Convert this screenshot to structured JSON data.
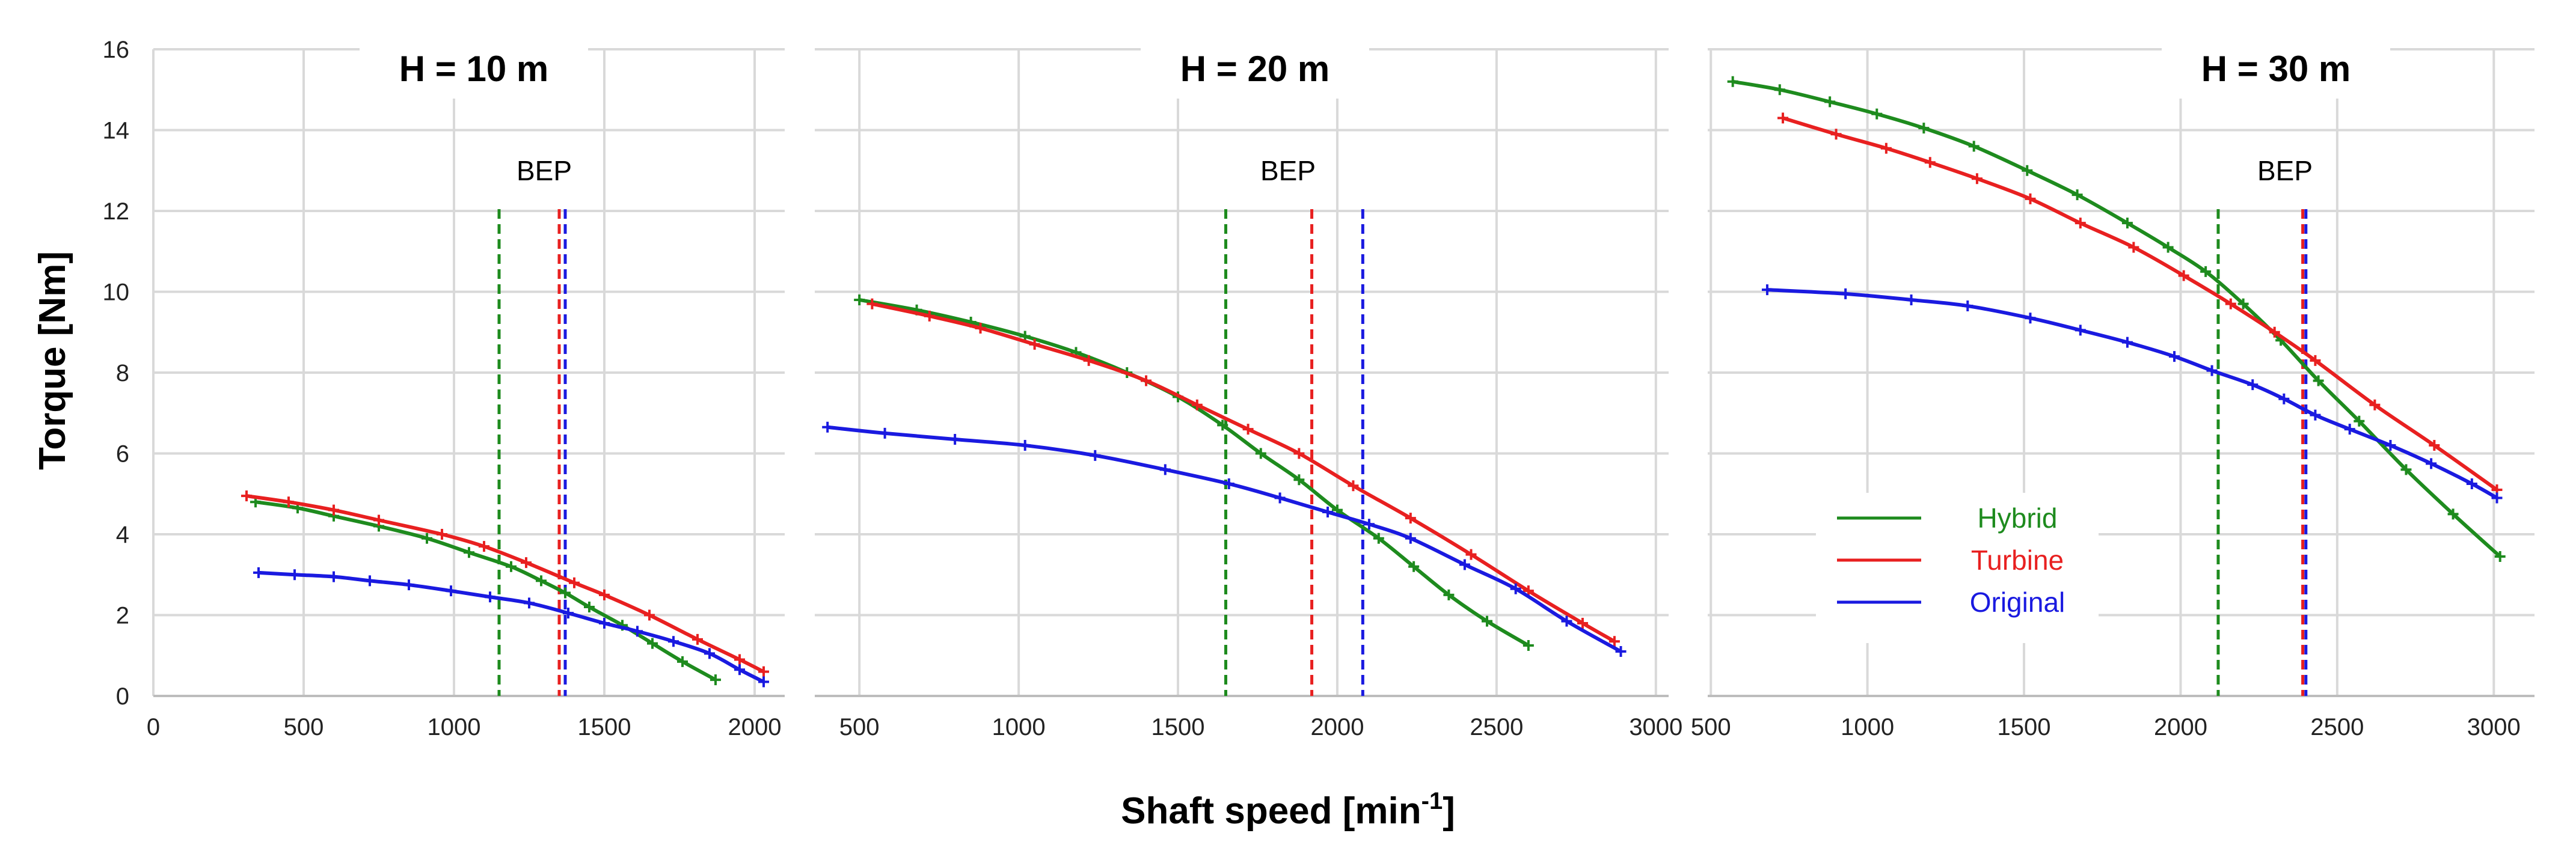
{
  "colors": {
    "Hybrid": "#1e8b1e",
    "Turbine": "#e82020",
    "Original": "#1a1ae0",
    "grid": "#d9d9d9"
  },
  "ylabel": "Torque [Nm]",
  "xlabel_main": "Shaft speed [min",
  "xlabel_sup": "-1",
  "xlabel_end": "]",
  "bep_label": "BEP",
  "legend": [
    "Hybrid",
    "Turbine",
    "Original"
  ],
  "chart_data": [
    {
      "type": "line",
      "title": "H = 10 m",
      "xlim": [
        0,
        2100
      ],
      "ylim": [
        0,
        16
      ],
      "xticks": [
        0,
        500,
        1000,
        1500,
        2000
      ],
      "yticks": [
        0,
        2,
        4,
        6,
        8,
        10,
        12,
        14,
        16
      ],
      "bep": {
        "Hybrid": 1150,
        "Turbine": 1350,
        "Original": 1370
      },
      "series": [
        {
          "name": "Hybrid",
          "x": [
            340,
            480,
            600,
            750,
            910,
            1050,
            1190,
            1290,
            1370,
            1450,
            1560,
            1660,
            1760,
            1870
          ],
          "y": [
            4.8,
            4.65,
            4.45,
            4.2,
            3.9,
            3.55,
            3.2,
            2.85,
            2.55,
            2.2,
            1.75,
            1.3,
            0.85,
            0.4
          ]
        },
        {
          "name": "Turbine",
          "x": [
            310,
            450,
            600,
            750,
            960,
            1100,
            1240,
            1400,
            1500,
            1650,
            1810,
            1950,
            2030
          ],
          "y": [
            4.95,
            4.8,
            4.6,
            4.35,
            4.0,
            3.7,
            3.3,
            2.8,
            2.5,
            2.0,
            1.4,
            0.9,
            0.6
          ]
        },
        {
          "name": "Original",
          "x": [
            350,
            470,
            600,
            720,
            850,
            990,
            1120,
            1250,
            1380,
            1500,
            1610,
            1730,
            1850,
            1950,
            2030
          ],
          "y": [
            3.05,
            3.0,
            2.95,
            2.85,
            2.75,
            2.6,
            2.45,
            2.3,
            2.05,
            1.8,
            1.6,
            1.35,
            1.05,
            0.65,
            0.35
          ]
        }
      ]
    },
    {
      "type": "line",
      "title": "H = 20 m",
      "xlim": [
        360,
        3040
      ],
      "ylim": [
        0,
        16
      ],
      "xticks": [
        500,
        1000,
        1500,
        2000,
        2500,
        3000
      ],
      "yticks": [
        0,
        2,
        4,
        6,
        8,
        10,
        12,
        14,
        16
      ],
      "bep": {
        "Hybrid": 1650,
        "Turbine": 1920,
        "Original": 2080
      },
      "series": [
        {
          "name": "Hybrid",
          "x": [
            500,
            680,
            850,
            1020,
            1180,
            1340,
            1500,
            1640,
            1760,
            1880,
            2000,
            2130,
            2240,
            2350,
            2470,
            2600
          ],
          "y": [
            9.8,
            9.55,
            9.25,
            8.9,
            8.5,
            8.0,
            7.4,
            6.7,
            6.0,
            5.35,
            4.6,
            3.9,
            3.2,
            2.5,
            1.85,
            1.25
          ]
        },
        {
          "name": "Turbine",
          "x": [
            540,
            720,
            880,
            1050,
            1220,
            1400,
            1560,
            1720,
            1880,
            2050,
            2230,
            2420,
            2600,
            2770,
            2870
          ],
          "y": [
            9.7,
            9.4,
            9.1,
            8.7,
            8.3,
            7.8,
            7.2,
            6.6,
            6.0,
            5.2,
            4.4,
            3.5,
            2.6,
            1.8,
            1.35
          ]
        },
        {
          "name": "Original",
          "x": [
            400,
            580,
            800,
            1020,
            1240,
            1460,
            1660,
            1820,
            1970,
            2100,
            2230,
            2400,
            2560,
            2720,
            2890
          ],
          "y": [
            6.65,
            6.5,
            6.35,
            6.2,
            5.95,
            5.6,
            5.25,
            4.9,
            4.55,
            4.25,
            3.9,
            3.25,
            2.65,
            1.85,
            1.1
          ]
        }
      ]
    },
    {
      "type": "line",
      "title": "H = 30 m",
      "xlim": [
        490,
        3130
      ],
      "ylim": [
        0,
        16
      ],
      "xticks": [
        500,
        1000,
        1500,
        2000,
        2500,
        3000
      ],
      "yticks": [
        0,
        2,
        4,
        6,
        8,
        10,
        12,
        14,
        16
      ],
      "bep": {
        "Hybrid": 2120,
        "Turbine": 2390,
        "Original": 2400
      },
      "series": [
        {
          "name": "Hybrid",
          "x": [
            570,
            720,
            880,
            1030,
            1180,
            1340,
            1510,
            1670,
            1830,
            1960,
            2080,
            2200,
            2320,
            2440,
            2570,
            2720,
            2870,
            3020
          ],
          "y": [
            15.2,
            15.0,
            14.7,
            14.4,
            14.05,
            13.6,
            13.0,
            12.4,
            11.7,
            11.1,
            10.5,
            9.7,
            8.8,
            7.8,
            6.8,
            5.6,
            4.5,
            3.45
          ]
        },
        {
          "name": "Turbine",
          "x": [
            730,
            900,
            1060,
            1200,
            1350,
            1520,
            1680,
            1850,
            2010,
            2160,
            2300,
            2430,
            2620,
            2810,
            3010
          ],
          "y": [
            14.3,
            13.9,
            13.55,
            13.2,
            12.8,
            12.3,
            11.7,
            11.1,
            10.4,
            9.7,
            9.0,
            8.3,
            7.2,
            6.2,
            5.1
          ]
        },
        {
          "name": "Original",
          "x": [
            680,
            930,
            1140,
            1320,
            1520,
            1680,
            1830,
            1980,
            2100,
            2230,
            2330,
            2430,
            2540,
            2670,
            2800,
            2930,
            3010
          ],
          "y": [
            10.05,
            9.95,
            9.8,
            9.65,
            9.35,
            9.05,
            8.75,
            8.4,
            8.05,
            7.7,
            7.35,
            6.95,
            6.6,
            6.2,
            5.75,
            5.25,
            4.9
          ]
        }
      ]
    }
  ]
}
